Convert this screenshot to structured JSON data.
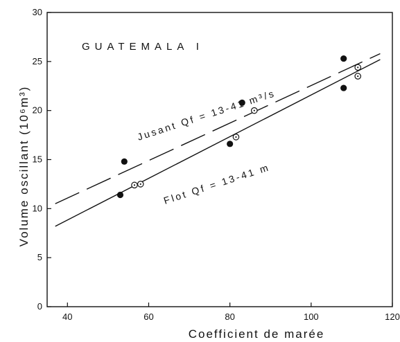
{
  "chart_data": {
    "type": "scatter",
    "title": "GUATEMALA  I",
    "xlabel": "Coefficient de marée",
    "ylabel": "Volume oscillant (10⁶m³)",
    "xlim": [
      35,
      120
    ],
    "ylim": [
      0,
      30
    ],
    "x_ticks": [
      40,
      60,
      80,
      100,
      120
    ],
    "y_ticks": [
      0,
      5,
      10,
      15,
      20,
      25,
      30
    ],
    "grid": false,
    "series": [
      {
        "name": "Jusant",
        "marker": "filled-circle",
        "points": [
          [
            53,
            11.4
          ],
          [
            54,
            14.8
          ],
          [
            80,
            16.6
          ],
          [
            83,
            20.8
          ],
          [
            108,
            25.3
          ],
          [
            108,
            22.3
          ]
        ]
      },
      {
        "name": "Flot",
        "marker": "open-circle-dot",
        "points": [
          [
            56.5,
            12.4
          ],
          [
            58,
            12.5
          ],
          [
            81.5,
            17.3
          ],
          [
            86,
            20.0
          ],
          [
            111.5,
            24.4
          ],
          [
            111.5,
            23.5
          ]
        ]
      }
    ],
    "lines": [
      {
        "name": "Jusant",
        "style": "dashed",
        "label": "Jusant  Qf = 13-41 m³/s",
        "from": [
          37,
          10.5
        ],
        "to": [
          117,
          25.8
        ]
      },
      {
        "name": "Flot",
        "style": "solid",
        "label": "Flot  Qf = 13-41 m",
        "from": [
          37,
          8.2
        ],
        "to": [
          117,
          25.2
        ]
      }
    ]
  }
}
